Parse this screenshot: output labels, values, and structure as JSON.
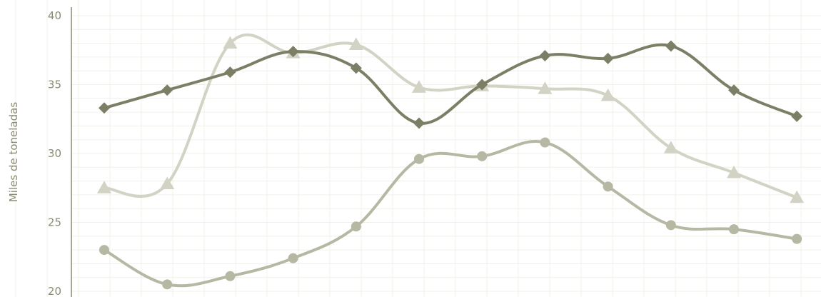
{
  "chart_data": {
    "type": "line",
    "title": "",
    "xlabel": "",
    "ylabel": "Miles de toneladas",
    "ylim": [
      20,
      40
    ],
    "yticks": [
      20,
      25,
      30,
      35,
      40
    ],
    "grid": true,
    "x": [
      1,
      2,
      3,
      4,
      5,
      6,
      7,
      8,
      9,
      10,
      11,
      12
    ],
    "series": [
      {
        "marker": "diamond",
        "color": "#7c7f65",
        "values": [
          33.3,
          34.6,
          35.9,
          37.4,
          36.2,
          32.2,
          35.0,
          37.1,
          36.9,
          37.8,
          34.6,
          32.7
        ]
      },
      {
        "marker": "triangle",
        "color": "#d2d3c4",
        "values": [
          27.5,
          27.8,
          38.0,
          37.3,
          37.9,
          34.8,
          34.9,
          34.7,
          34.2,
          30.4,
          28.6,
          26.8
        ]
      },
      {
        "marker": "circle",
        "color": "#b6b8a3",
        "values": [
          23.0,
          20.5,
          21.1,
          22.4,
          24.7,
          29.6,
          29.8,
          30.8,
          27.6,
          24.8,
          24.5,
          23.8
        ]
      }
    ]
  }
}
